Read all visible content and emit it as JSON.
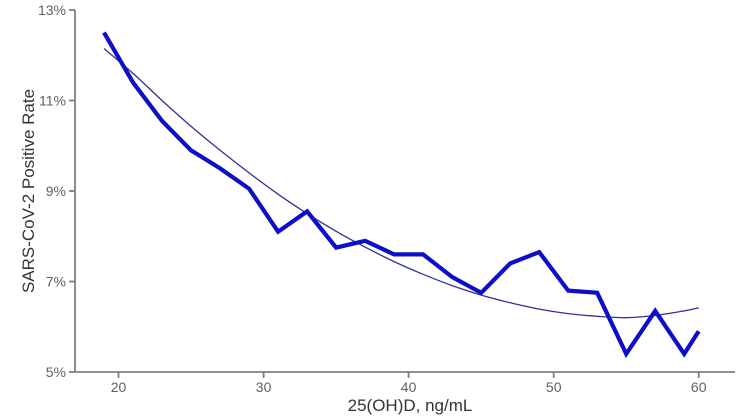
{
  "chart_data": {
    "type": "line",
    "title": "",
    "xlabel": "25(OH)D, ng/mL",
    "ylabel": "SARS-CoV-2 Positive Rate",
    "xlim": [
      17.0,
      62.5
    ],
    "ylim": [
      5,
      13
    ],
    "grid": false,
    "legend_position": "none",
    "xticks": {
      "values": [
        20,
        30,
        40,
        50,
        60
      ],
      "labels": [
        "20",
        "30",
        "40",
        "50",
        "60"
      ]
    },
    "yticks": {
      "values": [
        5,
        7,
        9,
        11,
        13
      ],
      "labels": [
        "5%",
        "7%",
        "9%",
        "11%",
        "13%"
      ]
    },
    "colors": {
      "observed_line": "#0d0dcb",
      "trend_line": "#31319c",
      "axis_line": "#7f7f7f",
      "tick_label": "#606060",
      "axis_title": "#333333",
      "background": "#ffffff"
    },
    "series": [
      {
        "name": "observed-positive-rate",
        "role": "observed",
        "style": "thick-jagged",
        "points": [
          [
            19,
            12.5
          ],
          [
            21,
            11.4
          ],
          [
            23,
            10.55
          ],
          [
            25,
            9.9
          ],
          [
            27,
            9.5
          ],
          [
            29,
            9.05
          ],
          [
            31,
            8.1
          ],
          [
            33,
            8.55
          ],
          [
            35,
            7.75
          ],
          [
            37,
            7.9
          ],
          [
            39,
            7.6
          ],
          [
            41,
            7.6
          ],
          [
            43,
            7.1
          ],
          [
            45,
            6.75
          ],
          [
            47,
            7.4
          ],
          [
            49,
            7.65
          ],
          [
            51,
            6.8
          ],
          [
            53,
            6.75
          ],
          [
            55,
            5.4
          ],
          [
            57,
            6.35
          ],
          [
            59,
            5.4
          ],
          [
            60,
            5.9
          ]
        ]
      },
      {
        "name": "fitted-trend-curve",
        "role": "trend",
        "style": "thin-smooth",
        "points": [
          [
            19,
            12.15
          ],
          [
            21,
            11.6
          ],
          [
            23,
            11.0
          ],
          [
            25,
            10.43
          ],
          [
            27,
            9.9
          ],
          [
            29,
            9.4
          ],
          [
            31,
            8.93
          ],
          [
            33,
            8.5
          ],
          [
            35,
            8.11
          ],
          [
            37,
            7.76
          ],
          [
            39,
            7.44
          ],
          [
            41,
            7.16
          ],
          [
            43,
            6.91
          ],
          [
            45,
            6.7
          ],
          [
            47,
            6.53
          ],
          [
            49,
            6.39
          ],
          [
            51,
            6.29
          ],
          [
            53,
            6.23
          ],
          [
            55,
            6.2
          ],
          [
            57,
            6.25
          ],
          [
            59,
            6.35
          ],
          [
            60,
            6.42
          ]
        ]
      }
    ]
  }
}
